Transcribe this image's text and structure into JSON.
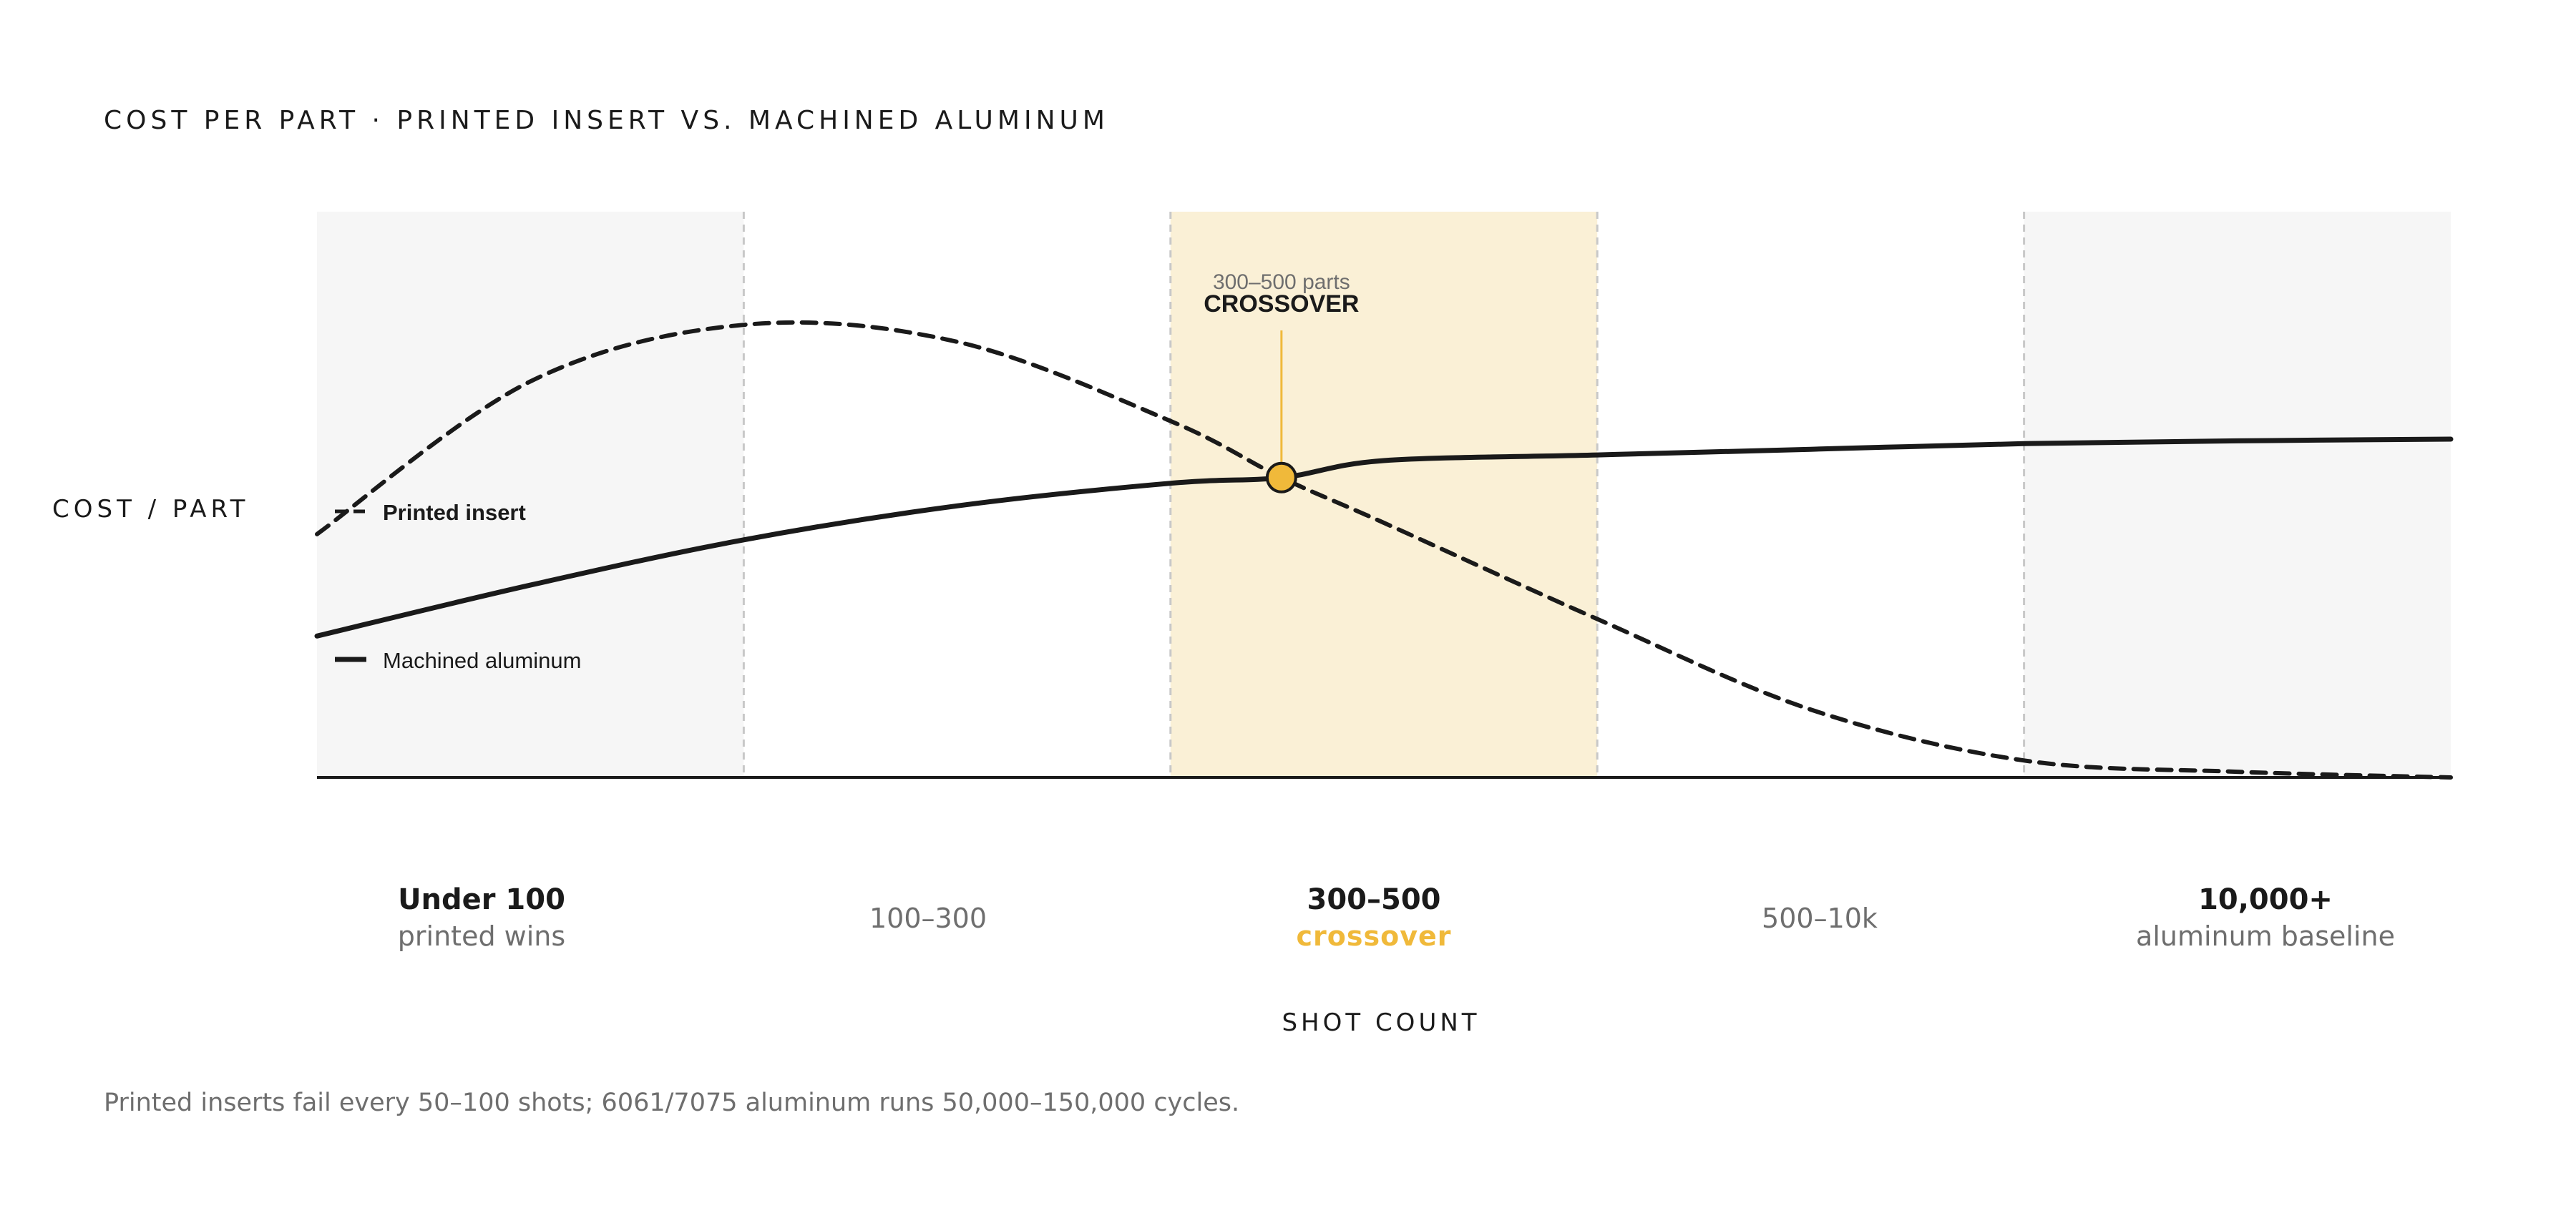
{
  "title": "COST PER PART · PRINTED INSERT VS. MACHINED ALUMINUM",
  "y_axis_label": "COST / PART",
  "x_axis_label": "SHOT COUNT",
  "footnote": "Printed inserts fail every 50–100 shots; 6061/7075 aluminum runs 50,000–150,000 cycles.",
  "colors": {
    "accent": "#f0b93a",
    "crossover_band": "#faf0d6",
    "end_band": "#f6f6f6",
    "line": "#1a1a1a",
    "muted_text": "#6e6e6e",
    "divider": "#c8c8c8"
  },
  "chart_data": {
    "type": "line",
    "y_scale": "relative (no numeric ticks)",
    "ylim": [
      0,
      100
    ],
    "xlim": [
      0,
      5
    ],
    "categories": [
      {
        "label": "Under 100",
        "sublabel": "printed wins",
        "style": "bold"
      },
      {
        "label": "100–300",
        "sublabel": "",
        "style": "plain"
      },
      {
        "label": "300–500",
        "sublabel": "crossover",
        "style": "accent"
      },
      {
        "label": "500–10k",
        "sublabel": "",
        "style": "plain"
      },
      {
        "label": "10,000+",
        "sublabel": "aluminum baseline",
        "style": "bold"
      }
    ],
    "bands": [
      {
        "from": 0,
        "to": 1,
        "fill": "end_band"
      },
      {
        "from": 2,
        "to": 3,
        "fill": "crossover_band"
      },
      {
        "from": 4,
        "to": 5,
        "fill": "end_band"
      }
    ],
    "dividers": [
      1,
      2,
      3,
      4
    ],
    "series": [
      {
        "name": "Printed insert",
        "style": "dashed",
        "points": [
          [
            0,
            43
          ],
          [
            0.5,
            70
          ],
          [
            1,
            80
          ],
          [
            1.5,
            77
          ],
          [
            2,
            63
          ],
          [
            2.26,
            53
          ],
          [
            2.5,
            45
          ],
          [
            3,
            28
          ],
          [
            3.5,
            12
          ],
          [
            4,
            3
          ],
          [
            4.5,
            1
          ],
          [
            5,
            0
          ]
        ]
      },
      {
        "name": "Machined aluminum",
        "style": "solid",
        "points": [
          [
            0,
            25
          ],
          [
            0.5,
            34
          ],
          [
            1,
            42
          ],
          [
            1.5,
            48
          ],
          [
            2,
            52
          ],
          [
            2.26,
            53
          ],
          [
            2.5,
            56
          ],
          [
            3,
            57
          ],
          [
            3.5,
            58
          ],
          [
            4,
            59
          ],
          [
            4.5,
            59.5
          ],
          [
            5,
            59.8
          ]
        ]
      }
    ],
    "crossover": {
      "x": 2.26,
      "y": 53,
      "range_label": "300–500 parts",
      "label": "CROSSOVER"
    },
    "grid": false,
    "legend": "inline left"
  }
}
